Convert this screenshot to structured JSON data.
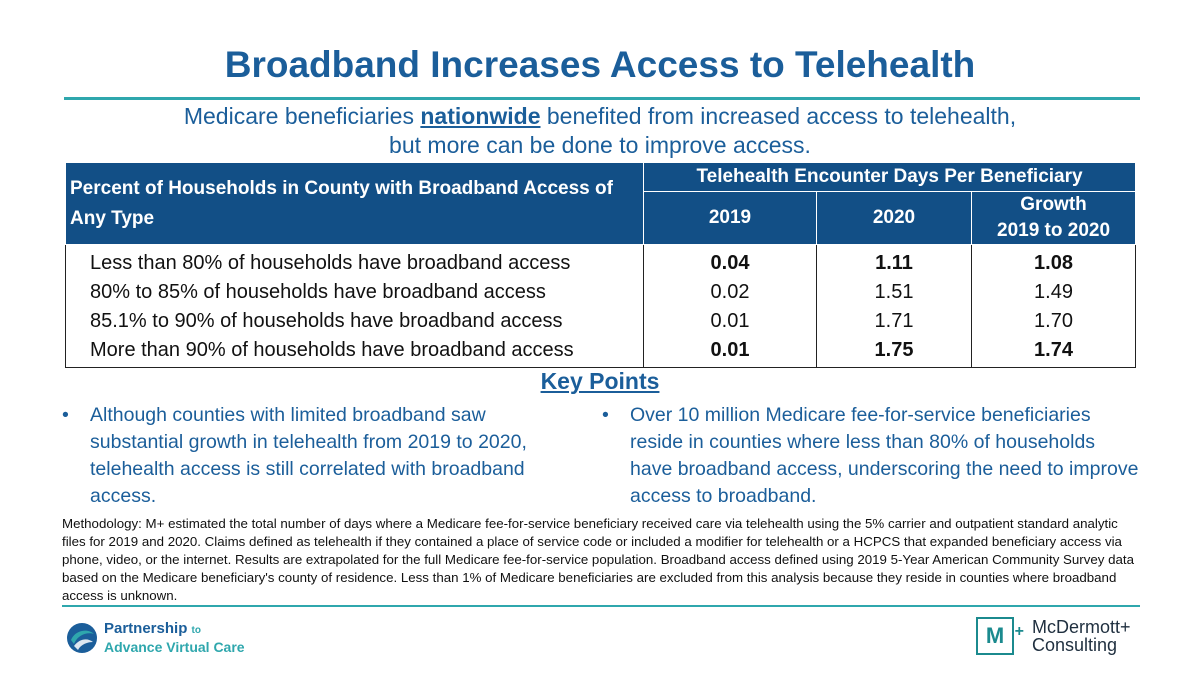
{
  "title": "Broadband Increases Access to Telehealth",
  "subtitle": {
    "line1_pre": "Medicare beneficiaries ",
    "line1_emph": "nationwide",
    "line1_post": " benefited from increased access to telehealth,",
    "line2": "but more can be done to improve access."
  },
  "table": {
    "row_header": "Percent of Households in County with Broadband Access of Any Type",
    "group_header": "Telehealth Encounter Days Per Beneficiary",
    "columns": [
      "2019",
      "2020",
      "Growth"
    ],
    "growth_sub": "2019 to 2020",
    "rows": [
      {
        "label": "Less than 80% of households have broadband access",
        "v2019": "0.04",
        "v2020": "1.11",
        "growth": "1.08",
        "bold": true
      },
      {
        "label": "80% to 85% of households have broadband access",
        "v2019": "0.02",
        "v2020": "1.51",
        "growth": "1.49",
        "bold": false
      },
      {
        "label": "85.1% to 90% of households have broadband access",
        "v2019": "0.01",
        "v2020": "1.71",
        "growth": "1.70",
        "bold": false
      },
      {
        "label": "More than 90% of households have broadband access",
        "v2019": "0.01",
        "v2020": "1.75",
        "growth": "1.74",
        "bold": true
      }
    ]
  },
  "key_points": {
    "title": "Key Points",
    "bullet_glyph": "•",
    "left": "Although counties with limited broadband saw substantial growth in telehealth from 2019 to 2020, telehealth access is still correlated with broadband access.",
    "right": "Over 10 million Medicare fee-for-service beneficiaries reside in counties where less than 80% of households have broadband access, underscoring the need to improve access to broadband."
  },
  "methodology": "Methodology: M+ estimated the total number of days where a Medicare fee-for-service beneficiary received care via telehealth using the 5% carrier and outpatient standard analytic files for 2019 and 2020. Claims defined as telehealth if they contained a place of service code or included a modifier for telehealth or a HCPCS that expanded beneficiary access via phone, video, or the internet. Results are extrapolated for the full Medicare fee-for-service population. Broadband access defined using 2019 5-Year American Community Survey data based on the Medicare beneficiary's county of residence. Less than 1% of Medicare beneficiaries are excluded from this analysis because they reside in counties where broadband access is unknown.",
  "logos": {
    "left": {
      "line1": "Partnership",
      "to": "to",
      "line2": "Advance Virtual Care",
      "icon": "pavc-swirl-icon"
    },
    "right": {
      "mark": "M",
      "plus": "+",
      "line1": "McDermott+",
      "line2": "Consulting",
      "icon": "mcdermott-mark-icon"
    }
  },
  "colors": {
    "brand_blue": "#1b5e9a",
    "header_navy": "#124f86",
    "teal": "#2fa7ad"
  }
}
